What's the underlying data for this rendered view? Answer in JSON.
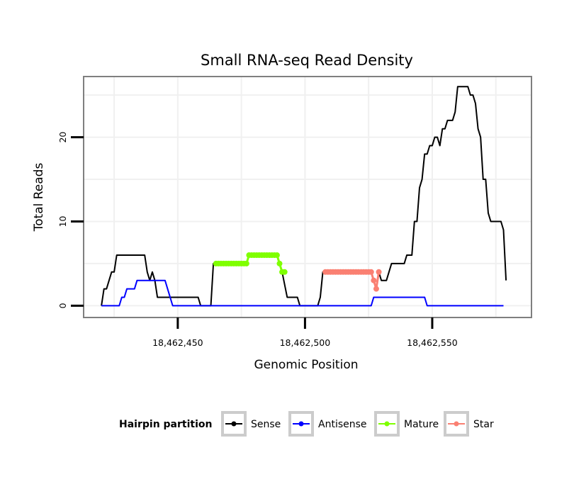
{
  "chart_data": {
    "type": "line",
    "title": "Small RNA-seq Read Density",
    "xlabel": "Genomic Position",
    "ylabel": "Total Reads",
    "xlim": [
      18462413,
      18462589
    ],
    "ylim": [
      -1.4,
      27.2
    ],
    "x_ticks": [
      18462450,
      18462500,
      18462550
    ],
    "x_tick_labels": [
      "18,462,450",
      "18,462,500",
      "18,462,550"
    ],
    "y_ticks": [
      0,
      10,
      20
    ],
    "y_tick_labels": [
      "0",
      "10",
      "20"
    ],
    "grid": true,
    "legend": {
      "title": "Hairpin partition",
      "position": "bottom",
      "entries": [
        "Sense",
        "Antisense",
        "Mature",
        "Star"
      ]
    },
    "series": [
      {
        "name": "Sense",
        "color": "#000000",
        "markers": false,
        "points": [
          [
            18462420,
            0
          ],
          [
            18462421,
            2
          ],
          [
            18462422,
            2
          ],
          [
            18462423,
            3
          ],
          [
            18462424,
            4
          ],
          [
            18462425,
            4
          ],
          [
            18462426,
            6
          ],
          [
            18462437,
            6
          ],
          [
            18462438,
            4
          ],
          [
            18462439,
            3
          ],
          [
            18462440,
            4
          ],
          [
            18462441,
            3
          ],
          [
            18462442,
            1
          ],
          [
            18462458,
            1
          ],
          [
            18462459,
            0
          ],
          [
            18462463,
            0
          ],
          [
            18462464,
            5
          ],
          [
            18462477,
            5
          ],
          [
            18462478,
            6
          ],
          [
            18462489,
            6
          ],
          [
            18462490,
            5
          ],
          [
            18462491,
            4
          ],
          [
            18462493,
            1
          ],
          [
            18462497,
            1
          ],
          [
            18462498,
            0
          ],
          [
            18462505,
            0
          ],
          [
            18462506,
            1
          ],
          [
            18462507,
            4
          ],
          [
            18462526,
            4
          ],
          [
            18462527,
            3
          ],
          [
            18462528,
            2
          ],
          [
            18462529,
            4
          ],
          [
            18462530,
            3
          ],
          [
            18462532,
            3
          ],
          [
            18462533,
            4
          ],
          [
            18462534,
            5
          ],
          [
            18462539,
            5
          ],
          [
            18462540,
            6
          ],
          [
            18462542,
            6
          ],
          [
            18462543,
            10
          ],
          [
            18462544,
            10
          ],
          [
            18462545,
            14
          ],
          [
            18462546,
            15
          ],
          [
            18462547,
            18
          ],
          [
            18462548,
            18
          ],
          [
            18462549,
            19
          ],
          [
            18462550,
            19
          ],
          [
            18462551,
            20
          ],
          [
            18462552,
            20
          ],
          [
            18462553,
            19
          ],
          [
            18462554,
            21
          ],
          [
            18462555,
            21
          ],
          [
            18462556,
            22
          ],
          [
            18462558,
            22
          ],
          [
            18462559,
            23
          ],
          [
            18462560,
            26
          ],
          [
            18462564,
            26
          ],
          [
            18462565,
            25
          ],
          [
            18462566,
            25
          ],
          [
            18462567,
            24
          ],
          [
            18462568,
            21
          ],
          [
            18462569,
            20
          ],
          [
            18462570,
            15
          ],
          [
            18462571,
            15
          ],
          [
            18462572,
            11
          ],
          [
            18462573,
            10
          ],
          [
            18462577,
            10
          ],
          [
            18462578,
            9
          ],
          [
            18462579,
            3
          ]
        ]
      },
      {
        "name": "Antisense",
        "color": "#0000FF",
        "markers": false,
        "points": [
          [
            18462420,
            0
          ],
          [
            18462427,
            0
          ],
          [
            18462428,
            1
          ],
          [
            18462429,
            1
          ],
          [
            18462430,
            2
          ],
          [
            18462433,
            2
          ],
          [
            18462434,
            3
          ],
          [
            18462445,
            3
          ],
          [
            18462446,
            2
          ],
          [
            18462447,
            1
          ],
          [
            18462448,
            0
          ],
          [
            18462526,
            0
          ],
          [
            18462527,
            1
          ],
          [
            18462547,
            1
          ],
          [
            18462548,
            0
          ],
          [
            18462578,
            0
          ]
        ]
      },
      {
        "name": "Mature",
        "color": "#7FFF00",
        "markers": true,
        "points": [
          [
            18462465,
            5
          ],
          [
            18462466,
            5
          ],
          [
            18462467,
            5
          ],
          [
            18462468,
            5
          ],
          [
            18462469,
            5
          ],
          [
            18462470,
            5
          ],
          [
            18462471,
            5
          ],
          [
            18462472,
            5
          ],
          [
            18462473,
            5
          ],
          [
            18462474,
            5
          ],
          [
            18462475,
            5
          ],
          [
            18462476,
            5
          ],
          [
            18462477,
            5
          ],
          [
            18462478,
            6
          ],
          [
            18462479,
            6
          ],
          [
            18462480,
            6
          ],
          [
            18462481,
            6
          ],
          [
            18462482,
            6
          ],
          [
            18462483,
            6
          ],
          [
            18462484,
            6
          ],
          [
            18462485,
            6
          ],
          [
            18462486,
            6
          ],
          [
            18462487,
            6
          ],
          [
            18462488,
            6
          ],
          [
            18462489,
            6
          ],
          [
            18462490,
            5
          ],
          [
            18462491,
            4
          ],
          [
            18462492,
            4
          ]
        ]
      },
      {
        "name": "Star",
        "color": "#FA8072",
        "markers": true,
        "points": [
          [
            18462508,
            4
          ],
          [
            18462509,
            4
          ],
          [
            18462510,
            4
          ],
          [
            18462511,
            4
          ],
          [
            18462512,
            4
          ],
          [
            18462513,
            4
          ],
          [
            18462514,
            4
          ],
          [
            18462515,
            4
          ],
          [
            18462516,
            4
          ],
          [
            18462517,
            4
          ],
          [
            18462518,
            4
          ],
          [
            18462519,
            4
          ],
          [
            18462520,
            4
          ],
          [
            18462521,
            4
          ],
          [
            18462522,
            4
          ],
          [
            18462523,
            4
          ],
          [
            18462524,
            4
          ],
          [
            18462525,
            4
          ],
          [
            18462526,
            4
          ],
          [
            18462527,
            3
          ],
          [
            18462528,
            2
          ],
          [
            18462529,
            4
          ]
        ]
      }
    ]
  }
}
